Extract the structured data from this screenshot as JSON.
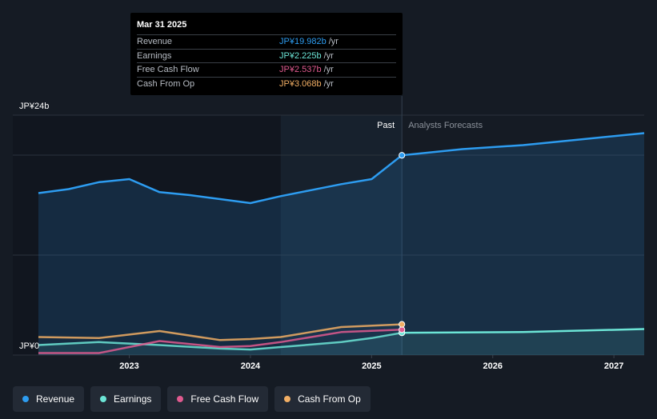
{
  "tooltip": {
    "date": "Mar 31 2025",
    "rows": [
      {
        "label": "Revenue",
        "value": "JP¥19.982b",
        "unit": "/yr",
        "color": "#2d9cf0"
      },
      {
        "label": "Earnings",
        "value": "JP¥2.225b",
        "unit": "/yr",
        "color": "#6ce5d6"
      },
      {
        "label": "Free Cash Flow",
        "value": "JP¥2.537b",
        "unit": "/yr",
        "color": "#e05a8f"
      },
      {
        "label": "Cash From Op",
        "value": "JP¥3.068b",
        "unit": "/yr",
        "color": "#f1ae64"
      }
    ]
  },
  "legend": [
    {
      "label": "Revenue",
      "color": "#2d9cf0"
    },
    {
      "label": "Earnings",
      "color": "#6ce5d6"
    },
    {
      "label": "Free Cash Flow",
      "color": "#e05a8f"
    },
    {
      "label": "Cash From Op",
      "color": "#f1ae64"
    }
  ],
  "chart_data": {
    "type": "line",
    "title": "",
    "y_unit": "JP¥ billions",
    "ylim": [
      0,
      24
    ],
    "y_tick_labels": [
      {
        "value": 24,
        "label": "JP¥24b"
      },
      {
        "value": 0,
        "label": "JP¥0"
      }
    ],
    "gridlines": [
      24,
      20,
      10,
      0
    ],
    "xlim": [
      2022.25,
      2027.25
    ],
    "x_ticks": [
      2023,
      2024,
      2025,
      2026,
      2027
    ],
    "past_label": "Past",
    "forecast_label": "Analysts Forecasts",
    "past_region_start": 2024.25,
    "divider_x": 2025.25,
    "series": [
      {
        "name": "Revenue",
        "color": "#2d9cf0",
        "fill": true,
        "points": [
          [
            2022.25,
            16.2
          ],
          [
            2022.5,
            16.6
          ],
          [
            2022.75,
            17.3
          ],
          [
            2023.0,
            17.6
          ],
          [
            2023.25,
            16.3
          ],
          [
            2023.5,
            16.0
          ],
          [
            2023.75,
            15.6
          ],
          [
            2024.0,
            15.2
          ],
          [
            2024.25,
            15.9
          ],
          [
            2024.5,
            16.5
          ],
          [
            2024.75,
            17.1
          ],
          [
            2025.0,
            17.6
          ],
          [
            2025.25,
            19.982
          ]
        ],
        "forecast": [
          [
            2025.25,
            19.982
          ],
          [
            2025.75,
            20.6
          ],
          [
            2026.25,
            21.0
          ],
          [
            2026.75,
            21.6
          ],
          [
            2027.25,
            22.2
          ]
        ]
      },
      {
        "name": "Earnings",
        "color": "#6ce5d6",
        "fill": true,
        "points": [
          [
            2022.25,
            1.0
          ],
          [
            2022.75,
            1.3
          ],
          [
            2023.25,
            1.0
          ],
          [
            2023.75,
            0.65
          ],
          [
            2024.0,
            0.55
          ],
          [
            2024.25,
            0.8
          ],
          [
            2024.75,
            1.3
          ],
          [
            2025.0,
            1.7
          ],
          [
            2025.25,
            2.225
          ]
        ],
        "forecast": [
          [
            2025.25,
            2.225
          ],
          [
            2026.25,
            2.3
          ],
          [
            2027.25,
            2.6
          ]
        ]
      },
      {
        "name": "Free Cash Flow",
        "color": "#e05a8f",
        "fill": false,
        "points": [
          [
            2022.25,
            0.2
          ],
          [
            2022.75,
            0.2
          ],
          [
            2023.25,
            1.4
          ],
          [
            2023.75,
            0.8
          ],
          [
            2024.0,
            0.9
          ],
          [
            2024.25,
            1.3
          ],
          [
            2024.75,
            2.3
          ],
          [
            2025.25,
            2.537
          ]
        ],
        "forecast": []
      },
      {
        "name": "Cash From Op",
        "color": "#f1ae64",
        "fill": false,
        "points": [
          [
            2022.25,
            1.8
          ],
          [
            2022.75,
            1.7
          ],
          [
            2023.25,
            2.4
          ],
          [
            2023.75,
            1.5
          ],
          [
            2024.0,
            1.6
          ],
          [
            2024.25,
            1.8
          ],
          [
            2024.75,
            2.8
          ],
          [
            2025.25,
            3.068
          ]
        ],
        "forecast": []
      }
    ]
  }
}
